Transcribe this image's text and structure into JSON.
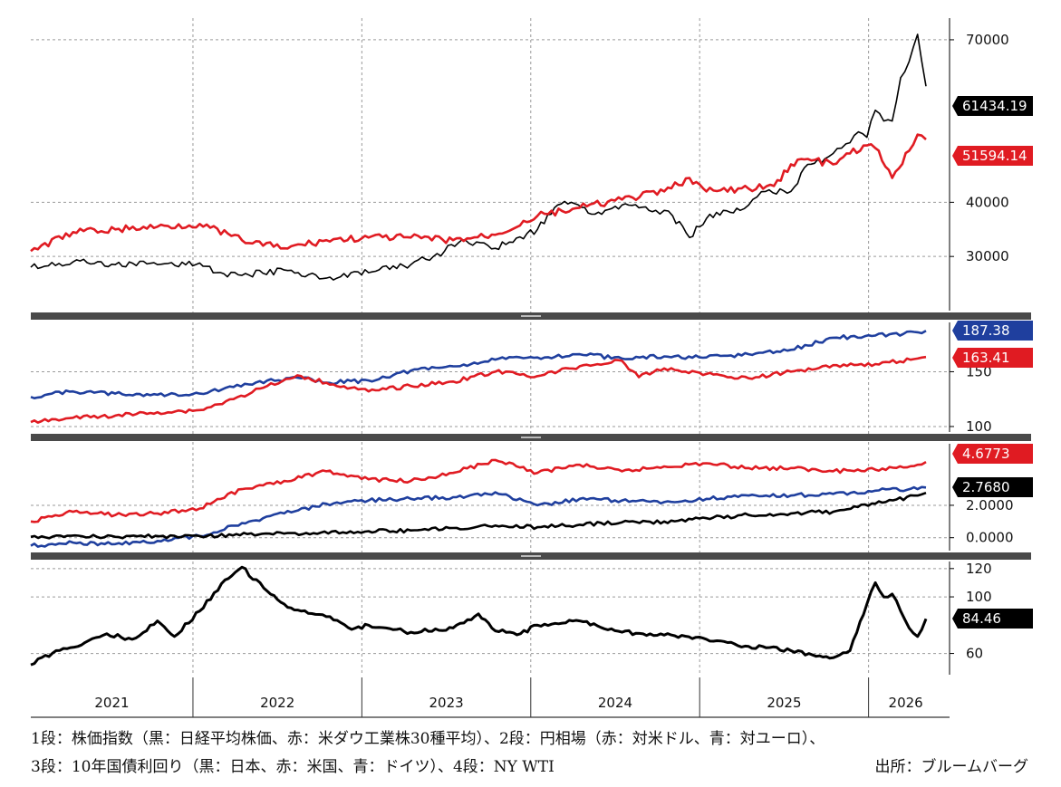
{
  "colors": {
    "black": "#000000",
    "red": "#e01b22",
    "blue": "#1f3f9e",
    "grid": "#9a9a9a",
    "separator": "#4a4a4a"
  },
  "caption": {
    "line1": "1段：株価指数（黒：日経平均株価、赤：米ダウ工業株30種平均）、2段：円相場（赤：対米ドル、青：対ユーロ）、",
    "line2": "3段：10年国債利回り（黒：日本、赤：米国、青：ドイツ）、4段：NY WTI",
    "source": "出所：ブルームバーグ"
  },
  "chart_data": [
    {
      "type": "line",
      "panel": 1,
      "x_axis_years": [
        "2021",
        "2022",
        "2023",
        "2024",
        "2025",
        "2026"
      ],
      "x_range": [
        2021.0,
        2026.3
      ],
      "ylim": [
        20000,
        74000
      ],
      "yticks": [
        "30000",
        "40000",
        "70000"
      ],
      "last_values": [
        "61434.19",
        "51594.14"
      ],
      "series": [
        {
          "color": "black",
          "style": "candlestick",
          "x": [
            2021.0,
            2021.25,
            2021.5,
            2021.75,
            2022.0,
            2022.1,
            2022.25,
            2022.5,
            2022.75,
            2023.0,
            2023.25,
            2023.45,
            2023.55,
            2023.75,
            2024.0,
            2024.1,
            2024.2,
            2024.3,
            2024.4,
            2024.5,
            2024.6,
            2024.7,
            2024.75,
            2024.8,
            2024.9,
            2025.0,
            2025.1,
            2025.2,
            2025.25,
            2025.3,
            2025.35,
            2025.5,
            2025.6,
            2025.7,
            2025.75,
            2025.8,
            2025.85,
            2025.9,
            2025.95,
            2026.0,
            2026.05,
            2026.1,
            2026.15,
            2026.2,
            2026.25,
            2026.3
          ],
          "values": [
            28000,
            29000,
            28500,
            28500,
            28800,
            27000,
            26500,
            27500,
            26000,
            27000,
            28500,
            31000,
            33000,
            31500,
            35000,
            39000,
            40000,
            38000,
            38500,
            39500,
            39000,
            38500,
            38500,
            37500,
            33500,
            37000,
            38500,
            38500,
            39500,
            41000,
            42000,
            42000,
            47000,
            48000,
            49000,
            50000,
            51000,
            53000,
            52000,
            57000,
            55000,
            55000,
            63000,
            66000,
            71000,
            61434
          ]
        },
        {
          "color": "red",
          "style": "line",
          "x": [
            2021.0,
            2021.25,
            2021.5,
            2021.75,
            2022.0,
            2022.25,
            2022.5,
            2022.75,
            2023.0,
            2023.25,
            2023.5,
            2023.75,
            2024.0,
            2024.25,
            2024.5,
            2024.75,
            2024.9,
            2025.0,
            2025.25,
            2025.4,
            2025.5,
            2025.6,
            2025.75,
            2025.85,
            2025.95,
            2026.0,
            2026.1,
            2026.2,
            2026.25,
            2026.3
          ],
          "values": [
            31000,
            34500,
            35000,
            35500,
            36000,
            33000,
            31500,
            33000,
            33500,
            33500,
            33000,
            34000,
            37500,
            39000,
            40500,
            42000,
            44500,
            42000,
            42500,
            43000,
            47000,
            48000,
            47000,
            49000,
            50500,
            50000,
            44500,
            49500,
            52500,
            51594
          ]
        }
      ]
    },
    {
      "type": "line",
      "panel": 2,
      "x_range": [
        2021.0,
        2026.3
      ],
      "ylim": [
        95,
        195
      ],
      "yticks": [
        "100",
        "150"
      ],
      "last_values": [
        "187.38",
        "163.41"
      ],
      "series": [
        {
          "color": "blue",
          "x": [
            2021.0,
            2021.25,
            2021.5,
            2021.75,
            2022.0,
            2022.2,
            2022.4,
            2022.6,
            2022.75,
            2023.0,
            2023.25,
            2023.5,
            2023.75,
            2024.0,
            2024.25,
            2024.5,
            2024.75,
            2025.0,
            2025.25,
            2025.5,
            2025.75,
            2026.0,
            2026.25,
            2026.3
          ],
          "values": [
            127,
            132,
            130,
            129,
            130,
            136,
            142,
            144,
            140,
            142,
            151,
            155,
            161,
            163,
            166,
            162,
            164,
            163,
            166,
            170,
            181,
            183,
            186,
            187.38
          ]
        },
        {
          "color": "red",
          "x": [
            2021.0,
            2021.25,
            2021.5,
            2021.75,
            2022.0,
            2022.2,
            2022.4,
            2022.6,
            2022.75,
            2023.0,
            2023.25,
            2023.5,
            2023.75,
            2024.0,
            2024.25,
            2024.5,
            2024.6,
            2024.75,
            2025.0,
            2025.25,
            2025.5,
            2025.75,
            2026.0,
            2026.25,
            2026.3
          ],
          "values": [
            104,
            108,
            110,
            113,
            115,
            125,
            137,
            146,
            140,
            132,
            137,
            141,
            150,
            146,
            155,
            160,
            145,
            153,
            148,
            144,
            150,
            156,
            157,
            162,
            163.41
          ]
        }
      ]
    },
    {
      "type": "line",
      "panel": 3,
      "x_range": [
        2021.0,
        2026.3
      ],
      "ylim": [
        -0.8,
        5.8
      ],
      "yticks": [
        "0.0000",
        "2.0000"
      ],
      "last_values": [
        "4.6773",
        "2.7680"
      ],
      "series": [
        {
          "color": "red",
          "x": [
            2021.0,
            2021.25,
            2021.5,
            2021.75,
            2022.0,
            2022.25,
            2022.5,
            2022.75,
            2023.0,
            2023.25,
            2023.5,
            2023.75,
            2024.0,
            2024.25,
            2024.5,
            2024.75,
            2025.0,
            2025.25,
            2025.5,
            2025.75,
            2026.0,
            2026.25,
            2026.3
          ],
          "values": [
            1.0,
            1.6,
            1.4,
            1.5,
            1.8,
            3.0,
            3.5,
            4.1,
            3.6,
            3.5,
            4.0,
            4.8,
            4.0,
            4.5,
            4.1,
            4.4,
            4.6,
            4.3,
            4.3,
            4.1,
            4.2,
            4.5,
            4.6773
          ]
        },
        {
          "color": "blue",
          "x": [
            2021.0,
            2021.25,
            2021.5,
            2021.75,
            2022.0,
            2022.25,
            2022.5,
            2022.75,
            2023.0,
            2023.25,
            2023.5,
            2023.75,
            2024.0,
            2024.25,
            2024.5,
            2024.75,
            2025.0,
            2025.25,
            2025.5,
            2025.75,
            2026.0,
            2026.25,
            2026.3
          ],
          "values": [
            -0.5,
            -0.3,
            -0.4,
            -0.2,
            0.1,
            0.9,
            1.5,
            2.1,
            2.3,
            2.4,
            2.5,
            2.8,
            2.0,
            2.4,
            2.3,
            2.2,
            2.4,
            2.6,
            2.6,
            2.7,
            2.9,
            3.0,
            3.1
          ]
        },
        {
          "color": "black",
          "x": [
            2021.0,
            2021.5,
            2022.0,
            2022.5,
            2023.0,
            2023.25,
            2023.5,
            2023.75,
            2024.0,
            2024.25,
            2024.5,
            2024.75,
            2025.0,
            2025.25,
            2025.5,
            2025.75,
            2026.0,
            2026.25,
            2026.3
          ],
          "values": [
            0.05,
            0.05,
            0.1,
            0.25,
            0.4,
            0.45,
            0.6,
            0.75,
            0.65,
            0.8,
            0.95,
            1.0,
            1.2,
            1.4,
            1.5,
            1.6,
            2.1,
            2.6,
            2.768
          ]
        }
      ]
    },
    {
      "type": "line",
      "panel": 4,
      "x_range": [
        2021.0,
        2026.3
      ],
      "ylim": [
        45,
        125
      ],
      "yticks": [
        "60",
        "100",
        "120"
      ],
      "last_values": [
        "84.46"
      ],
      "series": [
        {
          "color": "black",
          "x": [
            2021.0,
            2021.15,
            2021.3,
            2021.45,
            2021.6,
            2021.75,
            2021.85,
            2022.0,
            2022.15,
            2022.25,
            2022.4,
            2022.5,
            2022.6,
            2022.75,
            2022.9,
            2023.0,
            2023.25,
            2023.5,
            2023.65,
            2023.75,
            2023.9,
            2024.0,
            2024.25,
            2024.5,
            2024.75,
            2025.0,
            2025.25,
            2025.5,
            2025.65,
            2025.75,
            2025.85,
            2025.95,
            2026.0,
            2026.05,
            2026.1,
            2026.15,
            2026.2,
            2026.25,
            2026.3
          ],
          "values": [
            52,
            62,
            66,
            74,
            70,
            83,
            72,
            90,
            112,
            121,
            104,
            95,
            90,
            86,
            77,
            80,
            75,
            78,
            88,
            76,
            74,
            80,
            83,
            75,
            73,
            70,
            65,
            62,
            58,
            57,
            62,
            95,
            110,
            100,
            102,
            90,
            78,
            72,
            84.46
          ]
        }
      ]
    }
  ]
}
